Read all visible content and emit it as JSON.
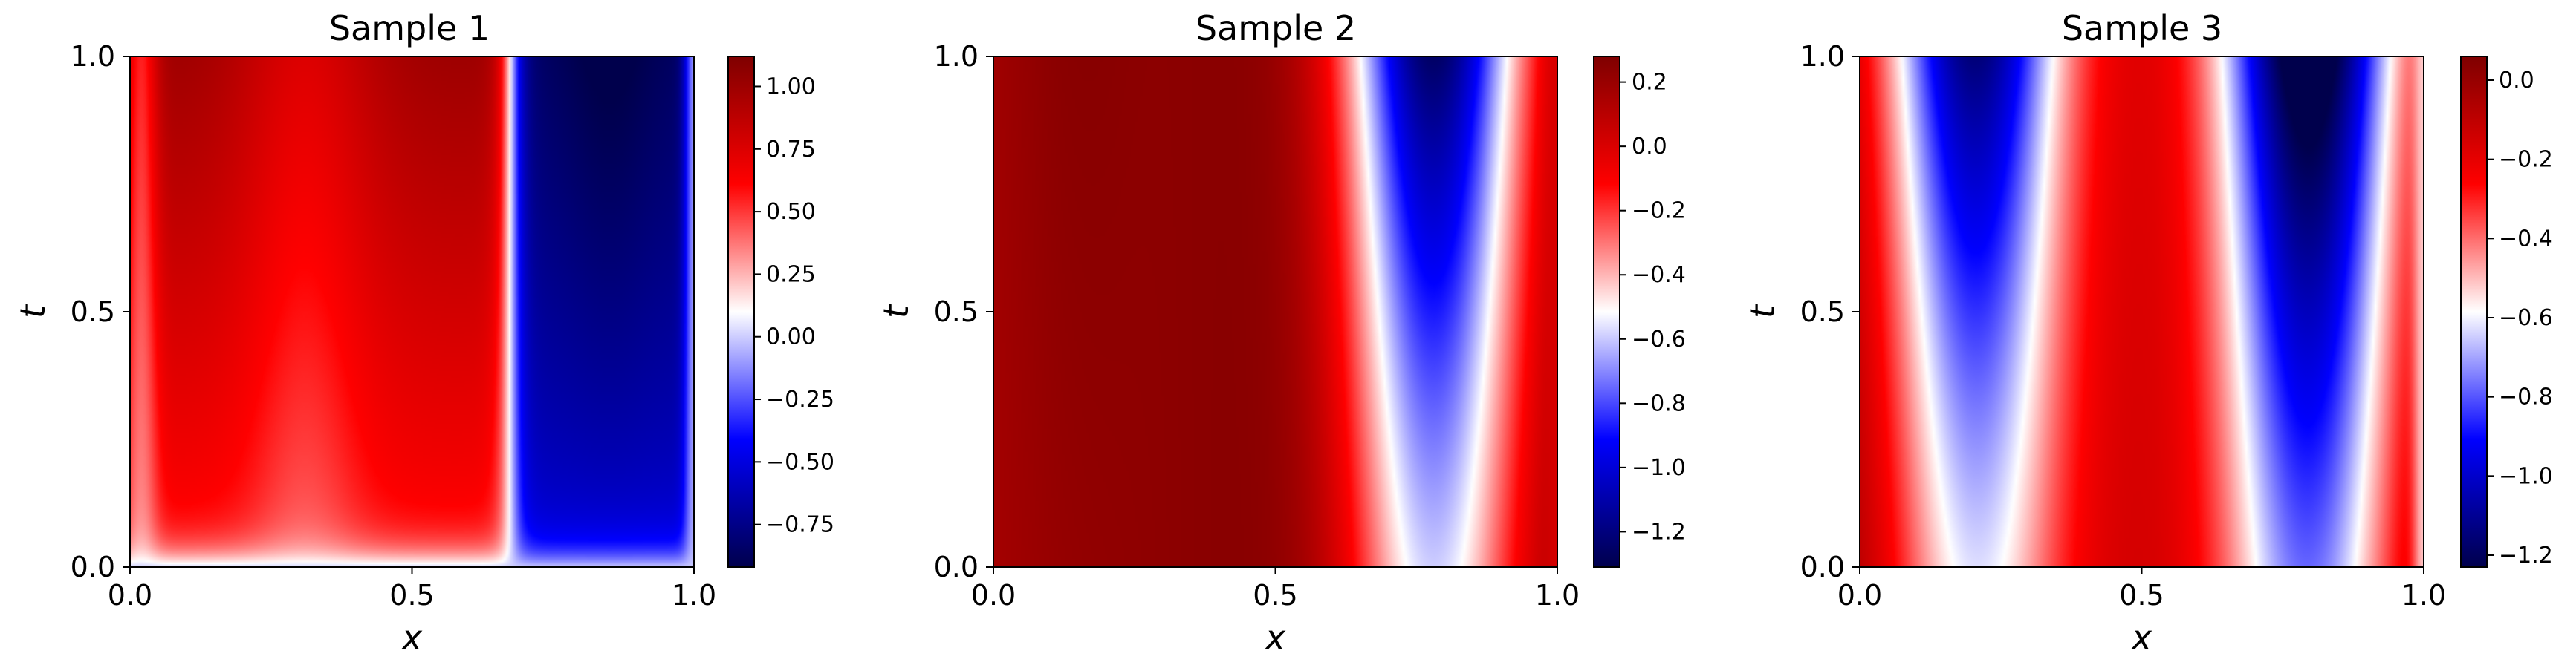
{
  "colormap": {
    "name": "seismic",
    "stops": [
      "#00004c",
      "#0000ff",
      "#ffffff",
      "#ff0000",
      "#7f0000"
    ]
  },
  "chart_data": [
    {
      "type": "heatmap",
      "title": "Sample 1",
      "xlabel": "x",
      "ylabel": "t",
      "xlim": [
        0,
        1
      ],
      "ylim": [
        0,
        1
      ],
      "x_ticks": [
        "0.0",
        "0.5",
        "1.0"
      ],
      "y_ticks": [
        "0.0",
        "0.5",
        "1.0"
      ],
      "color_range": [
        -0.92,
        1.12
      ],
      "colorbar_ticks": [
        "1.00",
        "0.75",
        "0.50",
        "0.25",
        "0.00",
        "−0.25",
        "−0.50",
        "−0.75"
      ],
      "grid": false
    },
    {
      "type": "heatmap",
      "title": "Sample 2",
      "xlabel": "x",
      "ylabel": "t",
      "xlim": [
        0,
        1
      ],
      "ylim": [
        0,
        1
      ],
      "x_ticks": [
        "0.0",
        "0.5",
        "1.0"
      ],
      "y_ticks": [
        "0.0",
        "0.5",
        "1.0"
      ],
      "color_range": [
        -1.31,
        0.28
      ],
      "colorbar_ticks": [
        "0.2",
        "0.0",
        "−0.2",
        "−0.4",
        "−0.6",
        "−0.8",
        "−1.0",
        "−1.2"
      ],
      "grid": false
    },
    {
      "type": "heatmap",
      "title": "Sample 3",
      "xlabel": "x",
      "ylabel": "t",
      "xlim": [
        0,
        1
      ],
      "ylim": [
        0,
        1
      ],
      "x_ticks": [
        "0.0",
        "0.5",
        "1.0"
      ],
      "y_ticks": [
        "0.0",
        "0.5",
        "1.0"
      ],
      "color_range": [
        -1.23,
        0.06
      ],
      "colorbar_ticks": [
        "0.0",
        "−0.2",
        "−0.4",
        "−0.6",
        "−0.8",
        "−1.0",
        "−1.2"
      ],
      "grid": false
    }
  ]
}
